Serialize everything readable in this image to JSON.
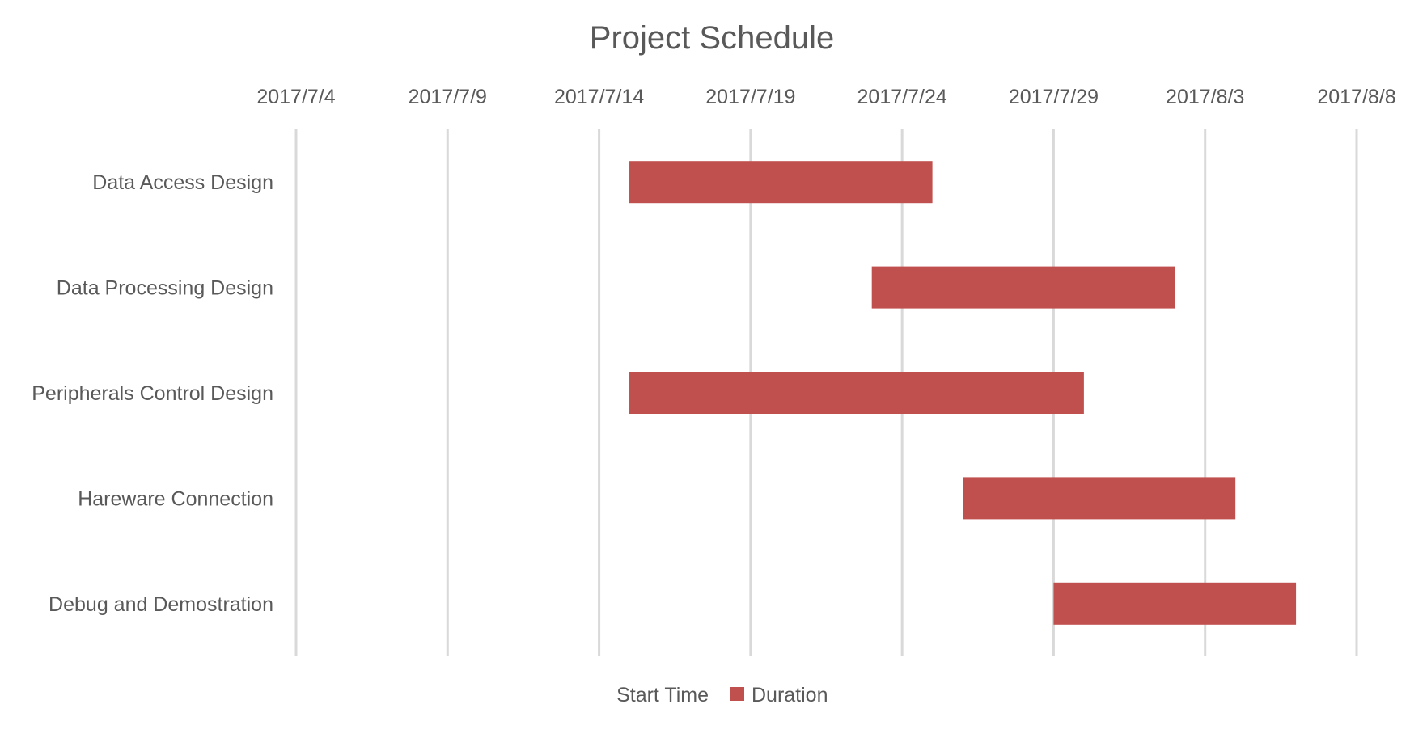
{
  "chart_data": {
    "type": "bar",
    "orientation": "horizontal",
    "stacked": true,
    "title": "Project Schedule",
    "xlabel": "",
    "ylabel": "",
    "x_axis": {
      "type": "date",
      "position": "top",
      "min": "2017-07-04",
      "max": "2017-08-08",
      "major_unit_days": 5,
      "tick_labels": [
        "2017/7/4",
        "2017/7/9",
        "2017/7/14",
        "2017/7/19",
        "2017/7/24",
        "2017/7/29",
        "2017/8/3",
        "2017/8/8"
      ]
    },
    "grid": true,
    "legend": {
      "position": "bottom",
      "entries": [
        {
          "name": "Start Time",
          "color": "none"
        },
        {
          "name": "Duration",
          "color": "#c0504d"
        }
      ]
    },
    "categories": [
      "Data Access Design",
      "Data Processing Design",
      "Peripherals Control Design",
      "Hareware Connection",
      "Debug and Demostration"
    ],
    "series": [
      {
        "name": "Start Time",
        "values": [
          "2017-07-15",
          "2017-07-23",
          "2017-07-15",
          "2017-07-26",
          "2017-07-29"
        ]
      },
      {
        "name": "Duration",
        "unit": "days",
        "values": [
          10,
          10,
          15,
          9,
          8
        ]
      }
    ],
    "colors": {
      "bar": "#c0504d",
      "grid": "#d9d9d9",
      "text": "#595959"
    }
  }
}
